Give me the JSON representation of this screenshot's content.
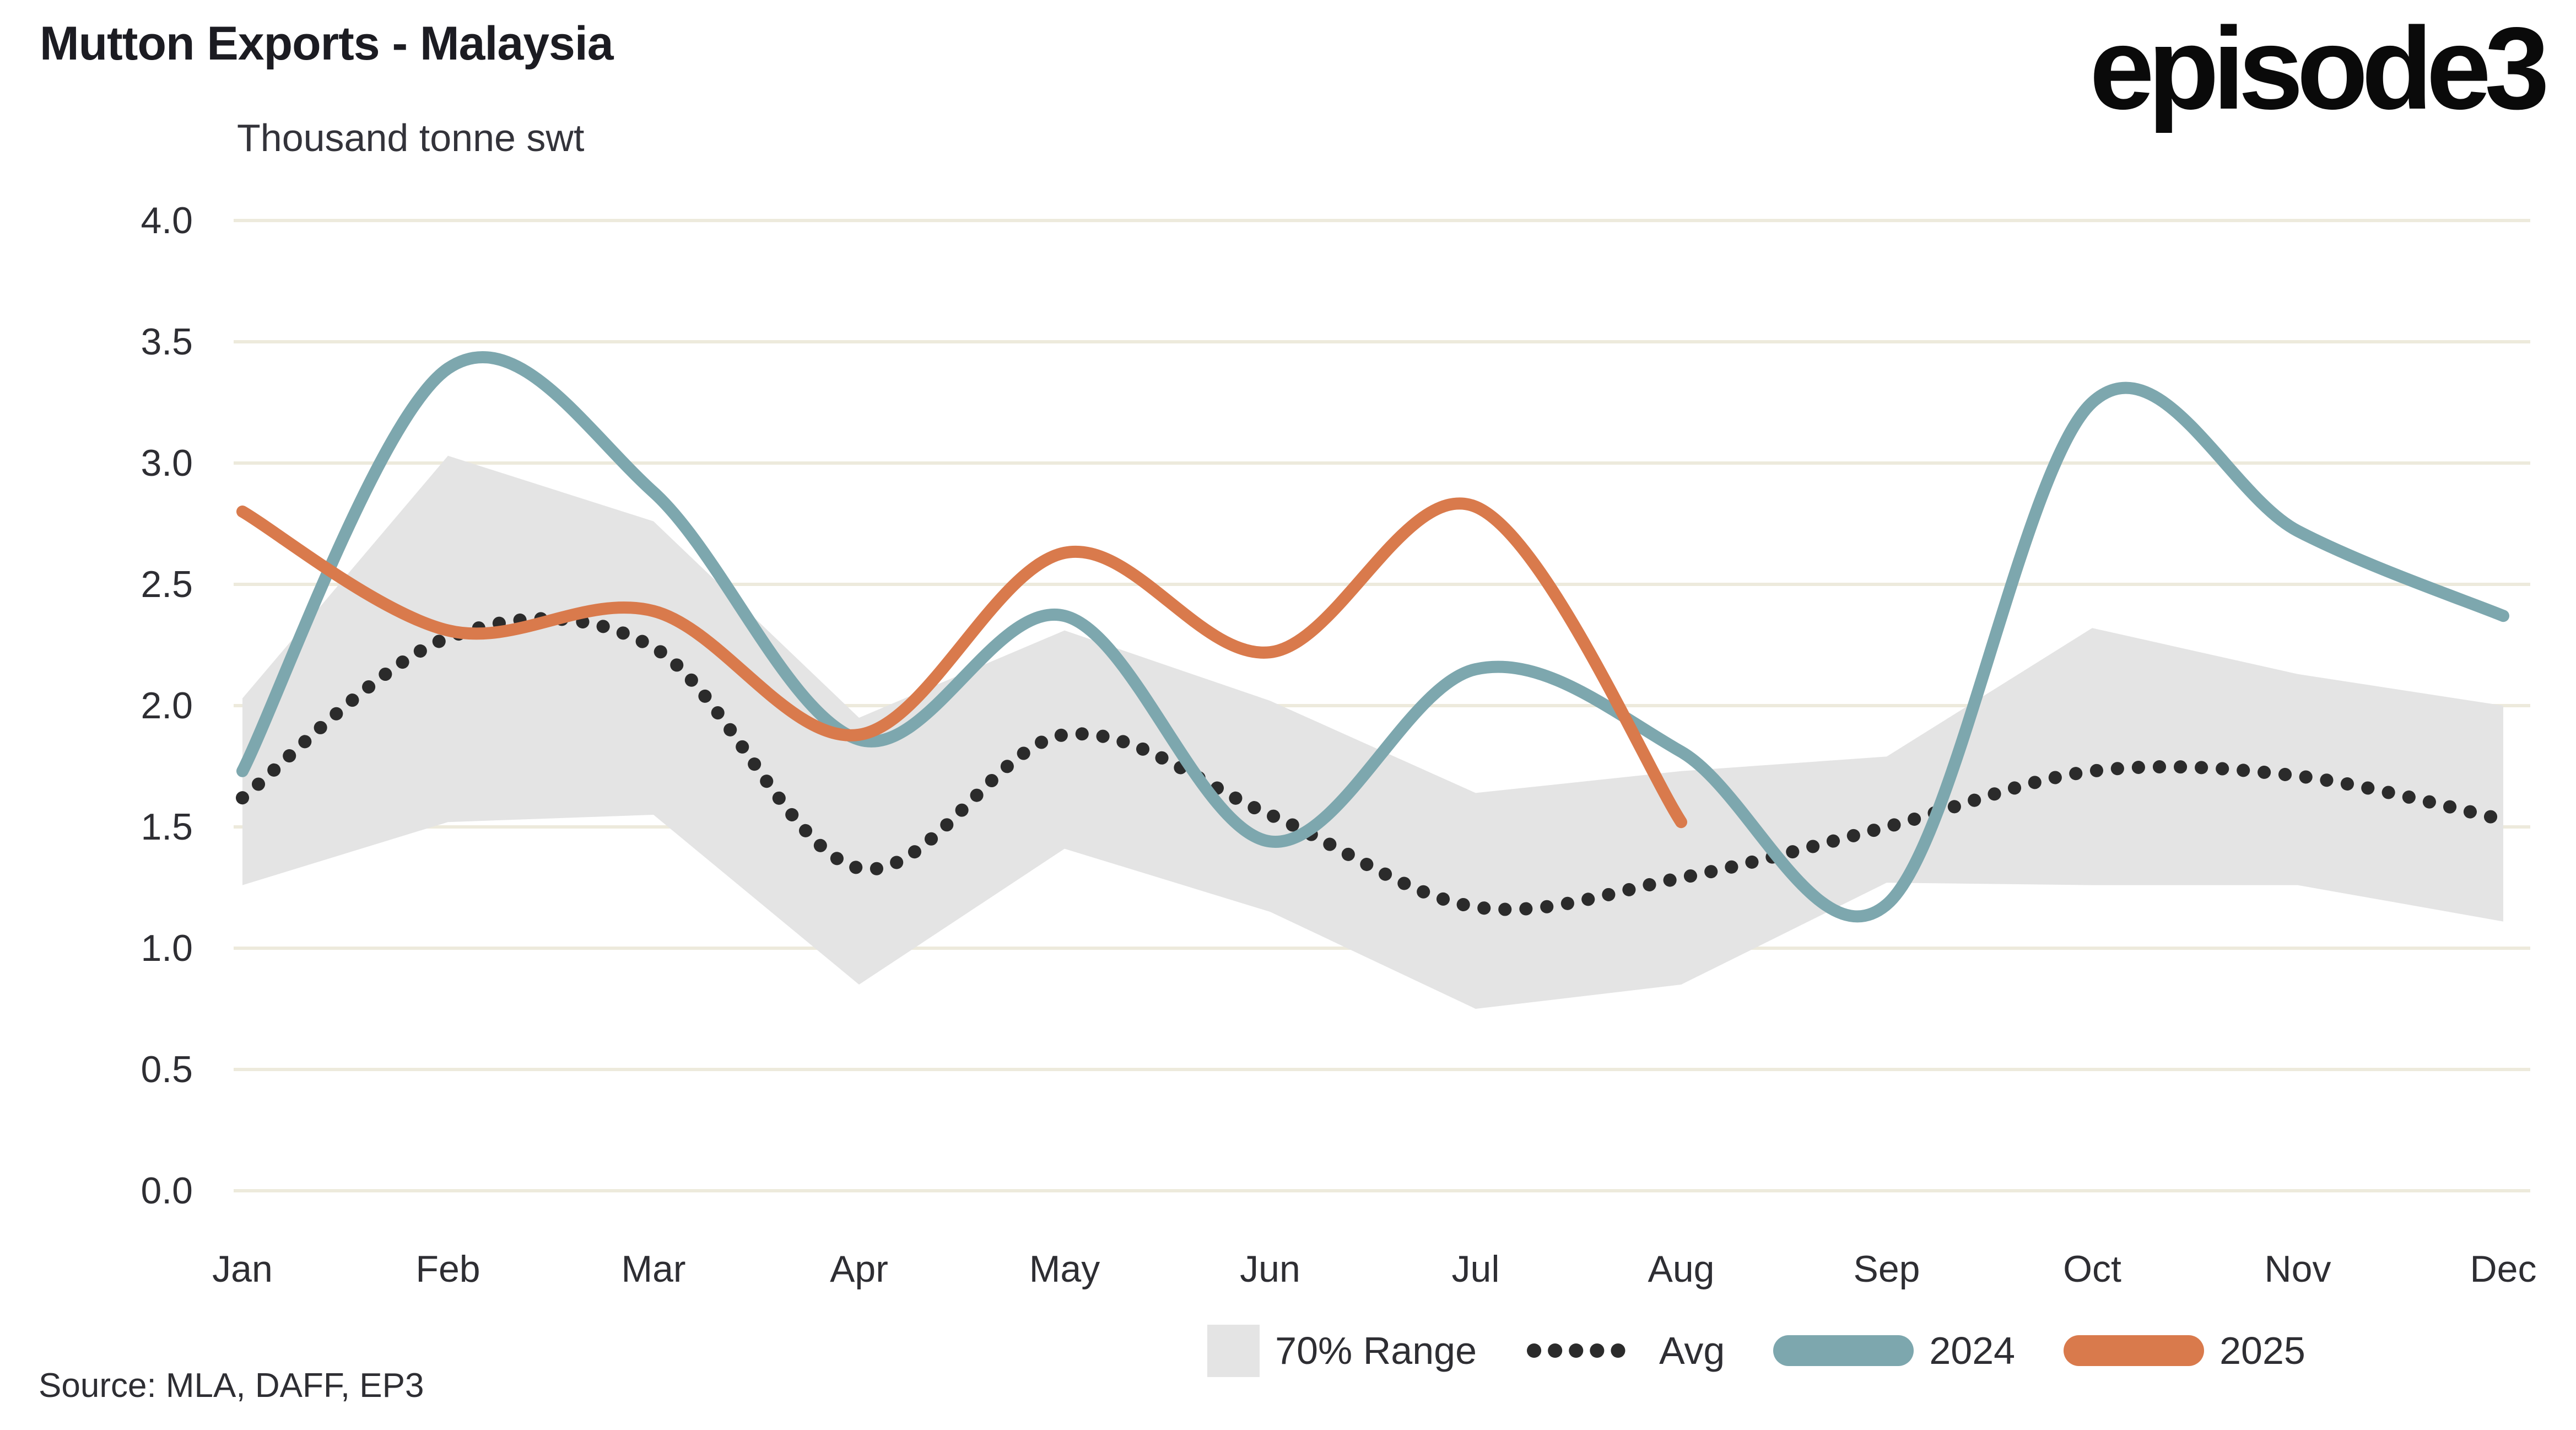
{
  "header": {
    "title": "Mutton Exports - Malaysia",
    "subtitle": "Thousand tonne swt",
    "logo": "episode3"
  },
  "footer": {
    "source": "Source: MLA, DAFF, EP3"
  },
  "legend": {
    "range_label": "70% Range",
    "avg_label": "Avg",
    "y2024_label": "2024",
    "y2025_label": "2025"
  },
  "chart_data": {
    "type": "line",
    "title": "Mutton Exports - Malaysia",
    "ylabel": "Thousand tonne swt",
    "source": "Source: MLA, DAFF, EP3",
    "categories": [
      "Jan",
      "Feb",
      "Mar",
      "Apr",
      "May",
      "Jun",
      "Jul",
      "Aug",
      "Sep",
      "Oct",
      "Nov",
      "Dec"
    ],
    "ylim": [
      0.0,
      4.0
    ],
    "ytick_step": 0.5,
    "yticks": [
      "4.0",
      "3.5",
      "3.0",
      "2.5",
      "2.0",
      "1.5",
      "1.0",
      "0.5",
      "0.0"
    ],
    "grid": "horizontal",
    "legend_position": "bottom",
    "colors": {
      "band": "#e4e4e4",
      "avg": "#2b2b2b",
      "y2024": "#7da7ae",
      "y2025": "#d97a4c",
      "gridline": "#edeadc",
      "background": "#ffffff"
    },
    "series": [
      {
        "name": "70% Range",
        "type": "band",
        "color": "#e4e4e4",
        "upper": [
          2.03,
          3.03,
          2.76,
          1.95,
          2.31,
          2.02,
          1.64,
          1.73,
          1.79,
          2.32,
          2.13,
          2.0
        ],
        "lower": [
          1.26,
          1.52,
          1.55,
          0.85,
          1.41,
          1.15,
          0.75,
          0.85,
          1.27,
          1.26,
          1.26,
          1.11
        ]
      },
      {
        "name": "Avg",
        "type": "dotted-line",
        "color": "#2b2b2b",
        "values": [
          1.62,
          2.28,
          2.24,
          1.33,
          1.88,
          1.55,
          1.17,
          1.29,
          1.5,
          1.73,
          1.71,
          1.53
        ]
      },
      {
        "name": "2024",
        "type": "line",
        "color": "#7da7ae",
        "values": [
          1.73,
          3.39,
          2.88,
          1.86,
          2.37,
          1.44,
          2.15,
          1.81,
          1.18,
          3.25,
          2.72,
          2.37
        ]
      },
      {
        "name": "2025",
        "type": "line",
        "color": "#d97a4c",
        "values": [
          2.8,
          2.31,
          2.39,
          1.88,
          2.63,
          2.22,
          2.82,
          1.52
        ]
      }
    ]
  }
}
